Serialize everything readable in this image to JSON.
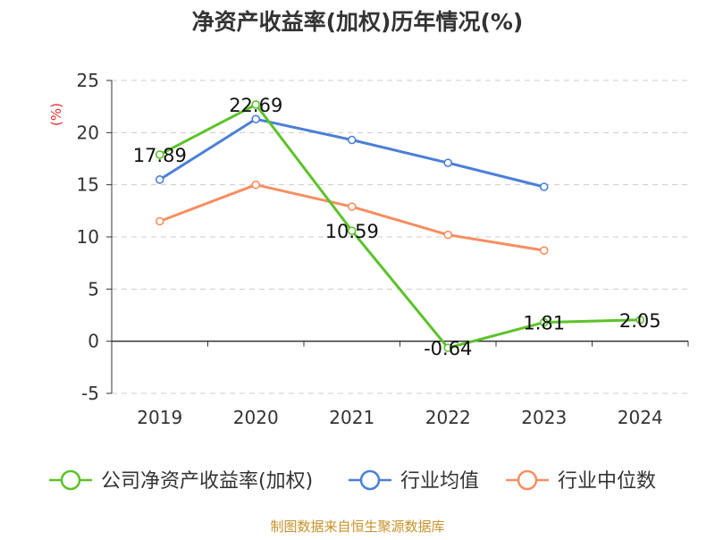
{
  "chart_data": {
    "type": "line",
    "title": "净资产收益率(加权)历年情况(%)",
    "ylabel": "(%)",
    "xlabel": "",
    "categories": [
      "2019",
      "2020",
      "2021",
      "2022",
      "2023",
      "2024"
    ],
    "ylim": [
      -5,
      25
    ],
    "yticks": [
      -5,
      0,
      5,
      10,
      15,
      20,
      25
    ],
    "grid": true,
    "legend_position": "bottom",
    "series": [
      {
        "name": "公司净资产收益率(加权)",
        "color": "#5cc22a",
        "values": [
          17.89,
          22.69,
          10.59,
          -0.64,
          1.81,
          2.05
        ],
        "labels": [
          "17.89",
          "22.69",
          "10.59",
          "-0.64",
          "1.81",
          "2.05"
        ]
      },
      {
        "name": "行业均值",
        "color": "#4a7fd6",
        "values": [
          15.5,
          21.3,
          19.3,
          17.1,
          14.8,
          null
        ]
      },
      {
        "name": "行业中位数",
        "color": "#f68e5f",
        "values": [
          11.5,
          15.0,
          12.9,
          10.2,
          8.7,
          null
        ]
      }
    ],
    "source": "制图数据来自恒生聚源数据库"
  }
}
